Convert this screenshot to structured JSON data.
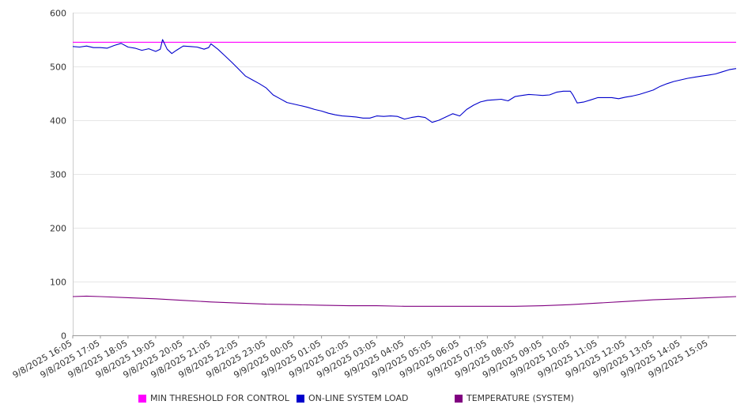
{
  "chart_data": {
    "type": "line",
    "title": "",
    "xlabel": "",
    "ylabel": "",
    "ylim": [
      0,
      600
    ],
    "yticks": [
      0,
      100,
      200,
      300,
      400,
      500,
      600
    ],
    "grid": "horizontal",
    "legend_position": "bottom",
    "x_tick_labels": [
      "9/8/2025 16:05",
      "9/8/2025 17:05",
      "9/8/2025 18:05",
      "9/8/2025 19:05",
      "9/8/2025 20:05",
      "9/8/2025 21:05",
      "9/8/2025 22:05",
      "9/8/2025 23:05",
      "9/9/2025 00:05",
      "9/9/2025 01:05",
      "9/9/2025 02:05",
      "9/9/2025 03:05",
      "9/9/2025 04:05",
      "9/9/2025 05:05",
      "9/9/2025 06:05",
      "9/9/2025 07:05",
      "9/9/2025 08:05",
      "9/9/2025 09:05",
      "9/9/2025 10:05",
      "9/9/2025 11:05",
      "9/9/2025 12:05",
      "9/9/2025 13:05",
      "9/9/2025 14:05",
      "9/9/2025 15:05"
    ],
    "series": [
      {
        "name": "MIN THRESHOLD FOR CONTROL",
        "color": "#ff00ff",
        "points": [
          [
            "9/8/2025 16:05",
            545
          ],
          [
            "9/9/2025 16:05",
            545
          ]
        ]
      },
      {
        "name": "ON-LINE SYSTEM LOAD",
        "color": "#0000cc",
        "points": [
          [
            "9/8/2025 16:05",
            537
          ],
          [
            "9/8/2025 16:20",
            536
          ],
          [
            "9/8/2025 16:35",
            538
          ],
          [
            "9/8/2025 16:50",
            535
          ],
          [
            "9/8/2025 17:05",
            535
          ],
          [
            "9/8/2025 17:20",
            534
          ],
          [
            "9/8/2025 17:35",
            539
          ],
          [
            "9/8/2025 17:50",
            543
          ],
          [
            "9/8/2025 18:05",
            536
          ],
          [
            "9/8/2025 18:20",
            534
          ],
          [
            "9/8/2025 18:35",
            530
          ],
          [
            "9/8/2025 18:50",
            533
          ],
          [
            "9/8/2025 19:05",
            528
          ],
          [
            "9/8/2025 19:15",
            532
          ],
          [
            "9/8/2025 19:20",
            550
          ],
          [
            "9/8/2025 19:30",
            532
          ],
          [
            "9/8/2025 19:40",
            524
          ],
          [
            "9/8/2025 19:50",
            530
          ],
          [
            "9/8/2025 20:05",
            538
          ],
          [
            "9/8/2025 20:20",
            537
          ],
          [
            "9/8/2025 20:35",
            536
          ],
          [
            "9/8/2025 20:50",
            532
          ],
          [
            "9/8/2025 21:00",
            535
          ],
          [
            "9/8/2025 21:05",
            542
          ],
          [
            "9/8/2025 21:20",
            532
          ],
          [
            "9/8/2025 21:35",
            520
          ],
          [
            "9/8/2025 21:50",
            508
          ],
          [
            "9/8/2025 22:05",
            495
          ],
          [
            "9/8/2025 22:20",
            482
          ],
          [
            "9/8/2025 22:35",
            475
          ],
          [
            "9/8/2025 22:50",
            468
          ],
          [
            "9/8/2025 23:05",
            460
          ],
          [
            "9/8/2025 23:20",
            447
          ],
          [
            "9/8/2025 23:35",
            440
          ],
          [
            "9/8/2025 23:50",
            433
          ],
          [
            "9/9/2025 00:05",
            430
          ],
          [
            "9/9/2025 00:20",
            427
          ],
          [
            "9/9/2025 00:35",
            424
          ],
          [
            "9/9/2025 00:50",
            420
          ],
          [
            "9/9/2025 01:05",
            417
          ],
          [
            "9/9/2025 01:20",
            413
          ],
          [
            "9/9/2025 01:35",
            410
          ],
          [
            "9/9/2025 01:50",
            408
          ],
          [
            "9/9/2025 02:05",
            407
          ],
          [
            "9/9/2025 02:20",
            406
          ],
          [
            "9/9/2025 02:35",
            404
          ],
          [
            "9/9/2025 02:50",
            404
          ],
          [
            "9/9/2025 03:05",
            408
          ],
          [
            "9/9/2025 03:20",
            407
          ],
          [
            "9/9/2025 03:35",
            408
          ],
          [
            "9/9/2025 03:50",
            407
          ],
          [
            "9/9/2025 04:05",
            402
          ],
          [
            "9/9/2025 04:20",
            405
          ],
          [
            "9/9/2025 04:35",
            407
          ],
          [
            "9/9/2025 04:50",
            405
          ],
          [
            "9/9/2025 05:05",
            396
          ],
          [
            "9/9/2025 05:20",
            400
          ],
          [
            "9/9/2025 05:35",
            406
          ],
          [
            "9/9/2025 05:50",
            412
          ],
          [
            "9/9/2025 06:05",
            408
          ],
          [
            "9/9/2025 06:20",
            420
          ],
          [
            "9/9/2025 06:35",
            428
          ],
          [
            "9/9/2025 06:50",
            434
          ],
          [
            "9/9/2025 07:05",
            437
          ],
          [
            "9/9/2025 07:20",
            438
          ],
          [
            "9/9/2025 07:35",
            439
          ],
          [
            "9/9/2025 07:50",
            436
          ],
          [
            "9/9/2025 08:05",
            444
          ],
          [
            "9/9/2025 08:20",
            446
          ],
          [
            "9/9/2025 08:35",
            448
          ],
          [
            "9/9/2025 08:50",
            447
          ],
          [
            "9/9/2025 09:05",
            446
          ],
          [
            "9/9/2025 09:20",
            447
          ],
          [
            "9/9/2025 09:35",
            452
          ],
          [
            "9/9/2025 09:50",
            454
          ],
          [
            "9/9/2025 10:05",
            454
          ],
          [
            "9/9/2025 10:10",
            448
          ],
          [
            "9/9/2025 10:20",
            432
          ],
          [
            "9/9/2025 10:35",
            434
          ],
          [
            "9/9/2025 10:50",
            438
          ],
          [
            "9/9/2025 11:05",
            442
          ],
          [
            "9/9/2025 11:20",
            442
          ],
          [
            "9/9/2025 11:35",
            442
          ],
          [
            "9/9/2025 11:50",
            440
          ],
          [
            "9/9/2025 12:05",
            443
          ],
          [
            "9/9/2025 12:20",
            445
          ],
          [
            "9/9/2025 12:35",
            448
          ],
          [
            "9/9/2025 12:50",
            452
          ],
          [
            "9/9/2025 13:05",
            456
          ],
          [
            "9/9/2025 13:20",
            463
          ],
          [
            "9/9/2025 13:35",
            468
          ],
          [
            "9/9/2025 13:50",
            472
          ],
          [
            "9/9/2025 14:05",
            475
          ],
          [
            "9/9/2025 14:20",
            478
          ],
          [
            "9/9/2025 14:35",
            480
          ],
          [
            "9/9/2025 14:50",
            482
          ],
          [
            "9/9/2025 15:05",
            484
          ],
          [
            "9/9/2025 15:20",
            486
          ],
          [
            "9/9/2025 15:35",
            490
          ],
          [
            "9/9/2025 15:50",
            494
          ],
          [
            "9/9/2025 16:05",
            496
          ]
        ]
      },
      {
        "name": "TEMPERATURE (SYSTEM)",
        "color": "#800080",
        "points": [
          [
            "9/8/2025 16:05",
            72
          ],
          [
            "9/8/2025 16:35",
            73
          ],
          [
            "9/8/2025 17:05",
            72
          ],
          [
            "9/8/2025 18:05",
            70
          ],
          [
            "9/8/2025 19:05",
            68
          ],
          [
            "9/8/2025 20:05",
            65
          ],
          [
            "9/8/2025 21:05",
            62
          ],
          [
            "9/8/2025 22:05",
            60
          ],
          [
            "9/8/2025 23:05",
            58
          ],
          [
            "9/9/2025 00:05",
            57
          ],
          [
            "9/9/2025 01:05",
            56
          ],
          [
            "9/9/2025 02:05",
            55
          ],
          [
            "9/9/2025 03:05",
            55
          ],
          [
            "9/9/2025 04:05",
            54
          ],
          [
            "9/9/2025 05:05",
            54
          ],
          [
            "9/9/2025 06:05",
            54
          ],
          [
            "9/9/2025 07:05",
            54
          ],
          [
            "9/9/2025 08:05",
            54
          ],
          [
            "9/9/2025 09:05",
            55
          ],
          [
            "9/9/2025 10:05",
            57
          ],
          [
            "9/9/2025 11:05",
            60
          ],
          [
            "9/9/2025 12:05",
            63
          ],
          [
            "9/9/2025 13:05",
            66
          ],
          [
            "9/9/2025 14:05",
            68
          ],
          [
            "9/9/2025 15:05",
            70
          ],
          [
            "9/9/2025 16:05",
            72
          ]
        ]
      }
    ]
  }
}
